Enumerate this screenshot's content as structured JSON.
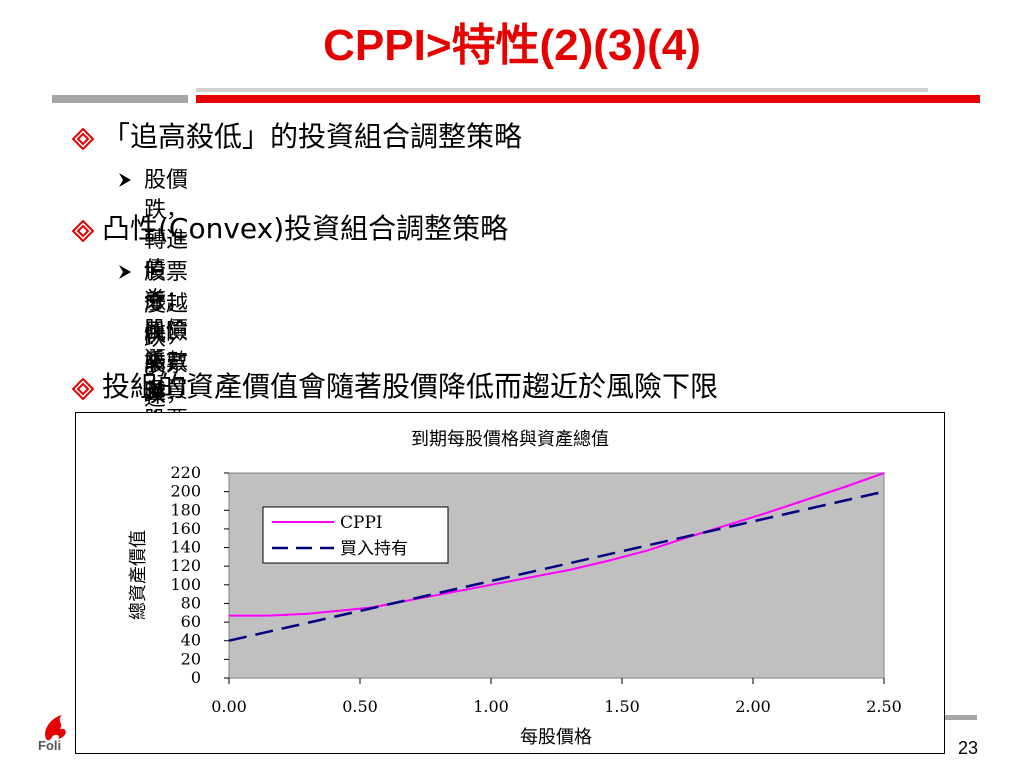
{
  "slide": {
    "title_cppi": "CPPI",
    "title_rest": ">特性(2)(3)(4)",
    "page_number": "23",
    "logo_text": "Foli"
  },
  "bullets": [
    {
      "text": "「追高殺低」的投資組合調整策略",
      "subs": [
        "股價跌，轉進債券；股價漲，多買股票"
      ]
    },
    {
      "text": "凸性(Convex)投資組合調整策略",
      "subs": [
        "股票漲，風險乘數越高，投入股票成倍數上漲，資產價值增加速",
        "度越快；股票跌，風險乘數越高，轉進債券越多，反而資產價值",
        "跌的速度比BH低"
      ]
    },
    {
      "text": "投組的資產價值會隨著股價降低而趨近於風險下限",
      "subs": []
    }
  ],
  "colors": {
    "accent": "#e60000",
    "plot_bg": "#c0c0c0",
    "cppi": "#ff00ff",
    "bh": "#000080"
  },
  "chart_data": {
    "type": "line",
    "title": "到期每股價格與資產總值",
    "xlabel": "每股價格",
    "ylabel": "總資產價值",
    "xlim": [
      0,
      2.5
    ],
    "ylim": [
      0,
      220
    ],
    "xticks": [
      "0.00",
      "0.50",
      "1.00",
      "1.50",
      "2.00",
      "2.50"
    ],
    "yticks": [
      "0",
      "20",
      "40",
      "60",
      "80",
      "100",
      "120",
      "140",
      "160",
      "180",
      "200",
      "220"
    ],
    "legend_position": "upper-left",
    "grid": false,
    "series": [
      {
        "name": "CPPI",
        "style": "solid",
        "x": [
          0.0,
          0.15,
          0.3,
          0.45,
          0.55,
          0.7,
          0.85,
          1.0,
          1.15,
          1.3,
          1.45,
          1.6,
          1.75,
          1.9,
          2.05,
          2.2,
          2.35,
          2.5
        ],
        "y": [
          67,
          67,
          69,
          73,
          76,
          84,
          92,
          100,
          108,
          116,
          126,
          137,
          151,
          164,
          177,
          191,
          205,
          220
        ]
      },
      {
        "name": "買入持有",
        "style": "dashed",
        "x": [
          0.0,
          2.5
        ],
        "y": [
          40,
          200
        ]
      }
    ]
  }
}
